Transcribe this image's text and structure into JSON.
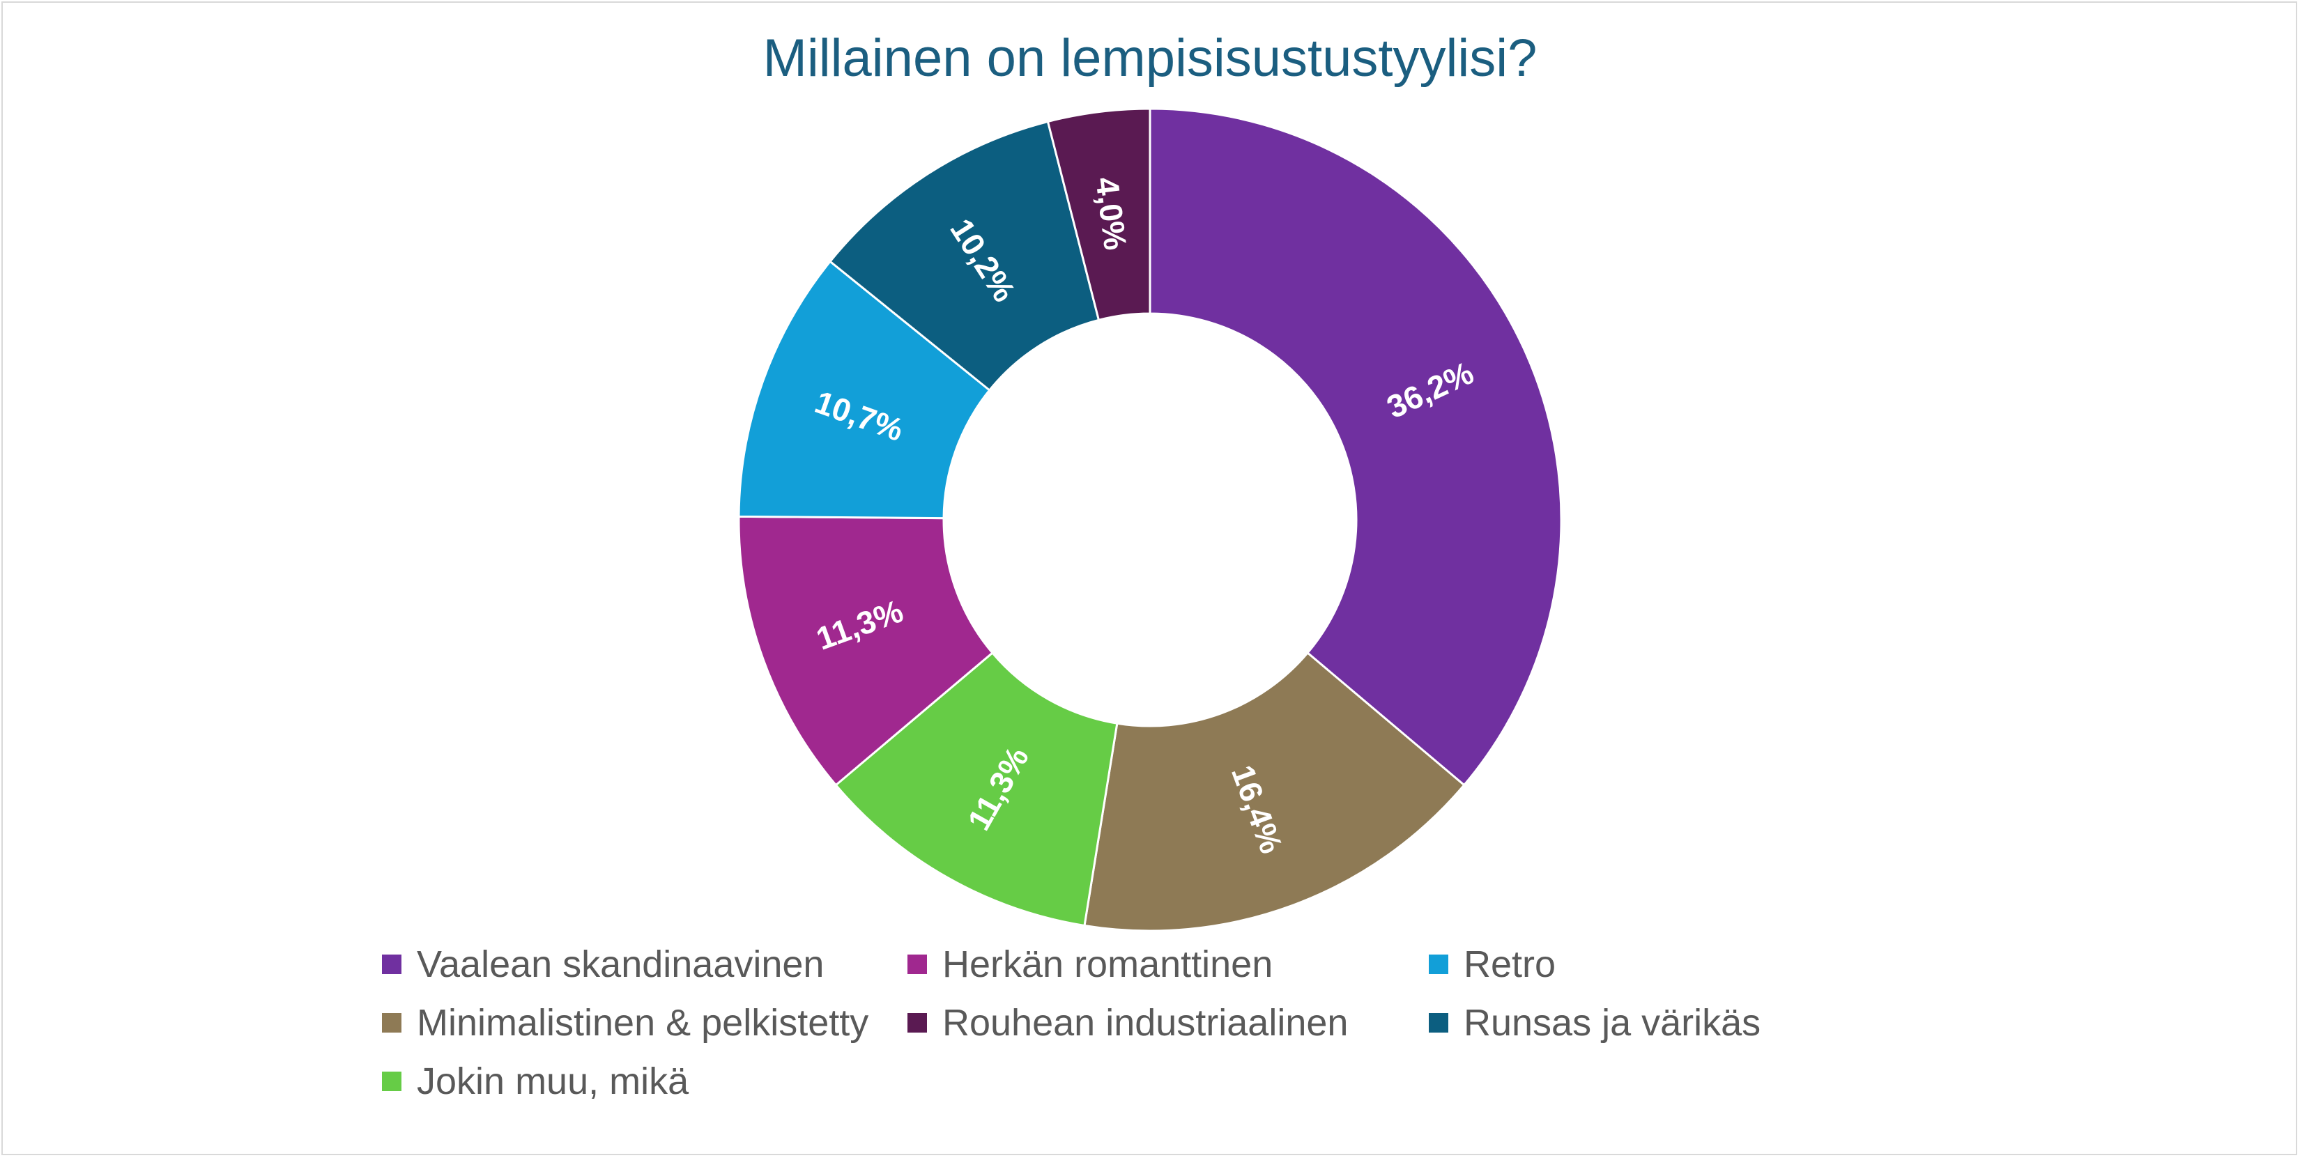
{
  "chart_data": {
    "type": "pie",
    "variant": "donut",
    "title": "Millainen on lempisisustustyylisi?",
    "legend_position": "bottom",
    "slices": [
      {
        "name": "Vaalean skandinaavinen",
        "value": 36.2,
        "label": "36,2%",
        "color": "#7030a0"
      },
      {
        "name": "Minimalistinen & pelkistetty",
        "value": 16.4,
        "label": "16,4%",
        "color": "#8e7a55"
      },
      {
        "name": "Jokin muu, mikä",
        "value": 11.3,
        "label": "11,3%",
        "color": "#66cc46"
      },
      {
        "name": "Herkän romanttinen",
        "value": 11.3,
        "label": "11,3%",
        "color": "#a0288f"
      },
      {
        "name": "Retro",
        "value": 10.7,
        "label": "10,7%",
        "color": "#129fd8"
      },
      {
        "name": "Runsas ja värikäs",
        "value": 10.2,
        "label": "10,2%",
        "color": "#0c5e80"
      },
      {
        "name": "Rouhean industriaalinen",
        "value": 4.0,
        "label": "4,0%",
        "color": "#5a1a52"
      }
    ],
    "legend": [
      {
        "name": "Vaalean skandinaavinen",
        "color": "#7030a0"
      },
      {
        "name": "Herkän romanttinen",
        "color": "#a0288f"
      },
      {
        "name": "Retro",
        "color": "#129fd8"
      },
      {
        "name": "Minimalistinen & pelkistetty",
        "color": "#8e7a55"
      },
      {
        "name": "Rouhean industriaalinen",
        "color": "#5a1a52"
      },
      {
        "name": "Runsas ja värikäs",
        "color": "#0c5e80"
      },
      {
        "name": "Jokin muu, mikä",
        "color": "#66cc46"
      }
    ]
  }
}
